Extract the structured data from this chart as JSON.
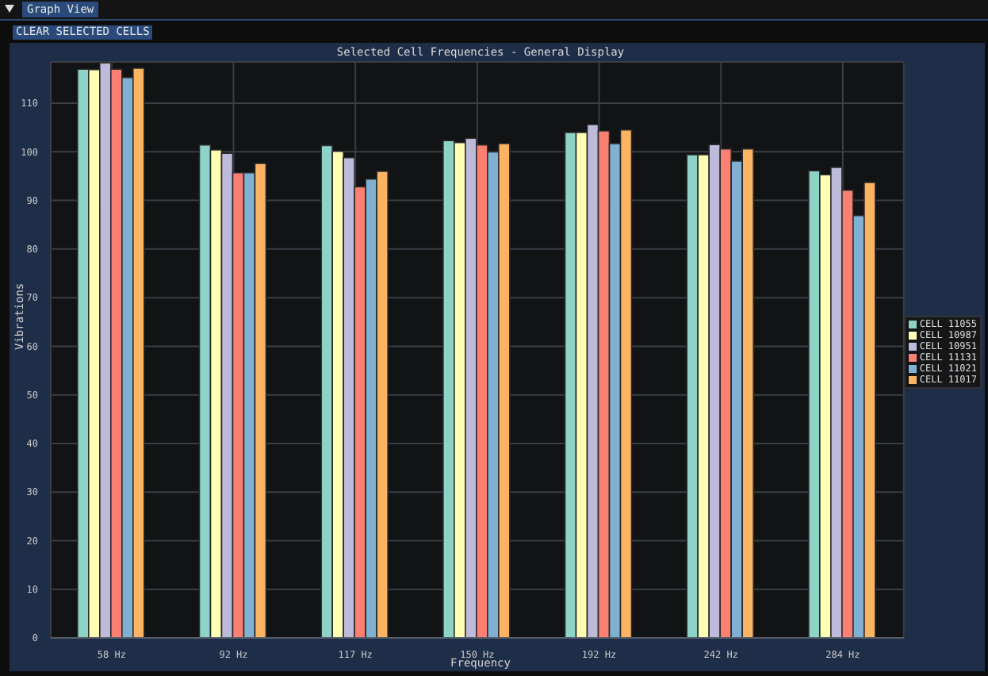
{
  "chart_data": {
    "type": "bar",
    "title": "Selected Cell Frequencies - General Display",
    "xlabel": "Frequency",
    "ylabel": "Vibrations",
    "annotations": [
      "Graph View",
      "CLEAR SELECTED CELLS"
    ],
    "categories": [
      "58 Hz",
      "92 Hz",
      "117 Hz",
      "150 Hz",
      "192 Hz",
      "242 Hz",
      "284 Hz"
    ],
    "series": [
      {
        "name": "CELL 11055",
        "color": "#8dd3c7",
        "values": [
          117.0,
          101.4,
          101.3,
          102.3,
          104.0,
          99.4,
          96.1
        ]
      },
      {
        "name": "CELL 10987",
        "color": "#ffffb3",
        "values": [
          116.9,
          100.4,
          100.1,
          101.9,
          104.0,
          99.4,
          95.3
        ]
      },
      {
        "name": "CELL 10951",
        "color": "#bebada",
        "values": [
          118.3,
          99.7,
          98.8,
          102.8,
          105.6,
          101.5,
          96.8
        ]
      },
      {
        "name": "CELL 11131",
        "color": "#fb8072",
        "values": [
          117.0,
          95.7,
          92.8,
          101.4,
          104.3,
          100.6,
          92.1
        ]
      },
      {
        "name": "CELL 11021",
        "color": "#80b1d3",
        "values": [
          115.3,
          95.7,
          94.4,
          100.0,
          101.7,
          98.1,
          86.9
        ]
      },
      {
        "name": "CELL 11017",
        "color": "#fdb462",
        "values": [
          117.2,
          97.6,
          96.0,
          101.7,
          104.5,
          100.6,
          93.7
        ]
      }
    ],
    "ylim": [
      0,
      118.5
    ],
    "yticks": [
      0,
      10,
      20,
      30,
      40,
      50,
      60,
      70,
      80,
      90,
      100,
      110
    ],
    "grid": true,
    "legend": "right"
  }
}
